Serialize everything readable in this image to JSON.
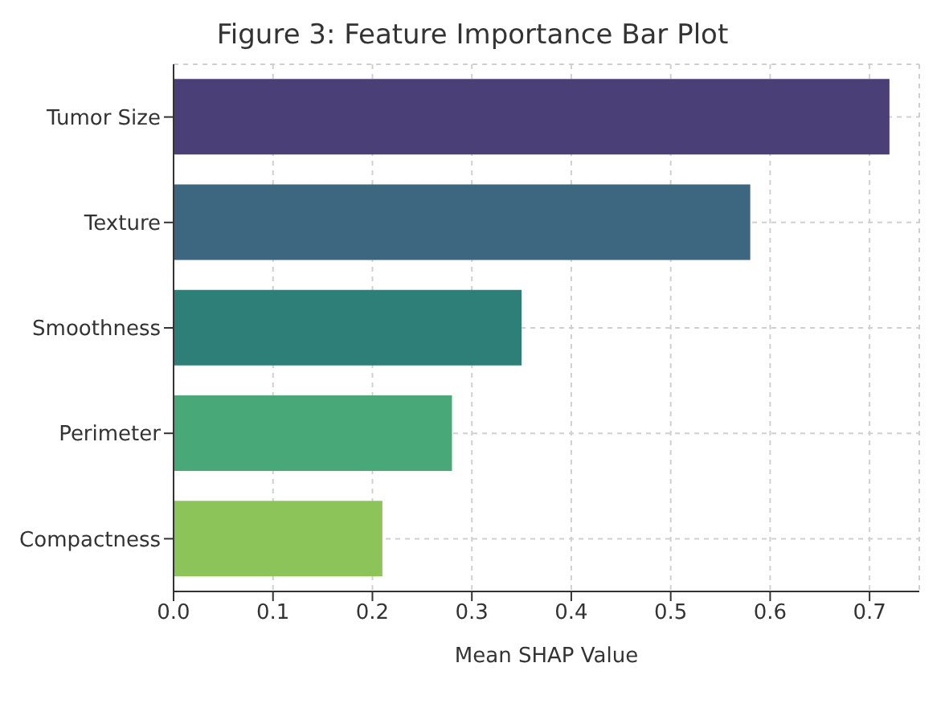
{
  "chart_data": {
    "type": "bar",
    "orientation": "horizontal",
    "title": "Figure 3: Feature Importance Bar Plot",
    "xlabel": "Mean SHAP Value",
    "categories": [
      "Tumor Size",
      "Texture",
      "Smoothness",
      "Perimeter",
      "Compactness"
    ],
    "values": [
      0.72,
      0.58,
      0.35,
      0.28,
      0.21
    ],
    "colors": [
      "#4b3f78",
      "#3d6680",
      "#2e7f78",
      "#48a878",
      "#8dc45a"
    ],
    "xlim": [
      0,
      0.75
    ],
    "xticks": [
      {
        "value": 0,
        "label": "0.0"
      },
      0.1,
      0.2,
      0.3,
      0.4,
      0.5,
      0.6,
      0.7
    ],
    "grid": true
  }
}
